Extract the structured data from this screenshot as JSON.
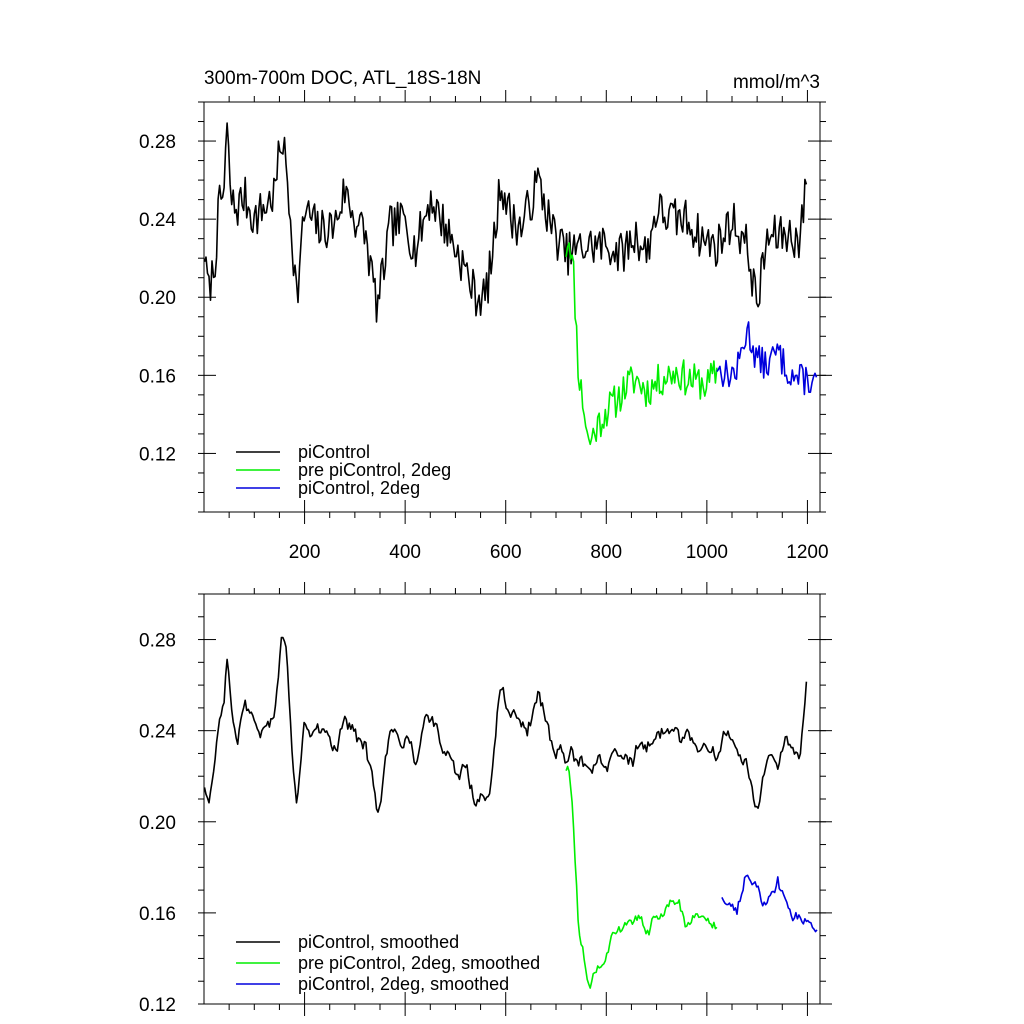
{
  "chart_data": [
    {
      "type": "line",
      "title": "300m-700m DOC, ATL_18S-18N",
      "units": "mmol/m^3",
      "xlim": [
        0,
        1225
      ],
      "ylim": [
        0.09,
        0.3
      ],
      "x_ticks": [
        200,
        400,
        600,
        800,
        1000,
        1200
      ],
      "x_tick_labels": [
        "200",
        "400",
        "600",
        "800",
        "1000",
        "1200"
      ],
      "show_x_tick_labels": true,
      "y_ticks": [
        0.12,
        0.16,
        0.2,
        0.24,
        0.28
      ],
      "y_tick_labels": [
        "0.12",
        "0.16",
        "0.20",
        "0.24",
        "0.28"
      ],
      "legend": {
        "placement": "bottom-left",
        "entries": [
          "piControl",
          "pre piControl, 2deg",
          "piControl, 2deg"
        ]
      },
      "series": [
        {
          "name": "piControl",
          "color": "#000000",
          "x_range": [
            1,
            1200
          ],
          "anchors": [
            [
              1,
              0.221
            ],
            [
              10,
              0.206
            ],
            [
              20,
              0.214
            ],
            [
              30,
              0.246
            ],
            [
              40,
              0.255
            ],
            [
              45,
              0.287
            ],
            [
              55,
              0.248
            ],
            [
              65,
              0.245
            ],
            [
              80,
              0.252
            ],
            [
              100,
              0.24
            ],
            [
              120,
              0.246
            ],
            [
              140,
              0.253
            ],
            [
              155,
              0.283
            ],
            [
              165,
              0.262
            ],
            [
              175,
              0.232
            ],
            [
              185,
              0.199
            ],
            [
              200,
              0.245
            ],
            [
              230,
              0.234
            ],
            [
              260,
              0.237
            ],
            [
              280,
              0.255
            ],
            [
              300,
              0.24
            ],
            [
              320,
              0.233
            ],
            [
              345,
              0.194
            ],
            [
              370,
              0.236
            ],
            [
              400,
              0.24
            ],
            [
              420,
              0.224
            ],
            [
              450,
              0.251
            ],
            [
              480,
              0.236
            ],
            [
              510,
              0.22
            ],
            [
              540,
              0.201
            ],
            [
              560,
              0.2
            ],
            [
              575,
              0.224
            ],
            [
              590,
              0.26
            ],
            [
              610,
              0.241
            ],
            [
              630,
              0.235
            ],
            [
              650,
              0.249
            ],
            [
              665,
              0.26
            ],
            [
              690,
              0.236
            ],
            [
              720,
              0.222
            ],
            [
              760,
              0.226
            ],
            [
              800,
              0.227
            ],
            [
              830,
              0.222
            ],
            [
              860,
              0.232
            ],
            [
              880,
              0.222
            ],
            [
              900,
              0.245
            ],
            [
              930,
              0.24
            ],
            [
              960,
              0.24
            ],
            [
              990,
              0.23
            ],
            [
              1020,
              0.226
            ],
            [
              1050,
              0.24
            ],
            [
              1080,
              0.226
            ],
            [
              1100,
              0.196
            ],
            [
              1120,
              0.23
            ],
            [
              1150,
              0.232
            ],
            [
              1170,
              0.232
            ],
            [
              1185,
              0.228
            ],
            [
              1200,
              0.265
            ]
          ],
          "noise": 0.011,
          "seed": 7,
          "smoothed": false
        },
        {
          "name": "pre piControl, 2deg",
          "color": "#00ee00",
          "x_range": [
            720,
            1020
          ],
          "anchors": [
            [
              720,
              0.223
            ],
            [
              725,
              0.231
            ],
            [
              735,
              0.212
            ],
            [
              745,
              0.161
            ],
            [
              755,
              0.144
            ],
            [
              765,
              0.125
            ],
            [
              780,
              0.133
            ],
            [
              800,
              0.142
            ],
            [
              820,
              0.147
            ],
            [
              840,
              0.155
            ],
            [
              860,
              0.158
            ],
            [
              880,
              0.152
            ],
            [
              900,
              0.156
            ],
            [
              920,
              0.16
            ],
            [
              940,
              0.162
            ],
            [
              960,
              0.158
            ],
            [
              980,
              0.157
            ],
            [
              1000,
              0.155
            ],
            [
              1020,
              0.162
            ]
          ],
          "noise": 0.009,
          "seed": 11,
          "smoothed": false
        },
        {
          "name": "piControl, 2deg",
          "color": "#0000dd",
          "x_range": [
            1020,
            1220
          ],
          "anchors": [
            [
              1020,
              0.164
            ],
            [
              1040,
              0.16
            ],
            [
              1060,
              0.162
            ],
            [
              1080,
              0.184
            ],
            [
              1100,
              0.168
            ],
            [
              1120,
              0.165
            ],
            [
              1140,
              0.172
            ],
            [
              1160,
              0.163
            ],
            [
              1180,
              0.158
            ],
            [
              1200,
              0.158
            ],
            [
              1220,
              0.155
            ]
          ],
          "noise": 0.008,
          "seed": 13,
          "smoothed": false
        }
      ]
    },
    {
      "type": "line",
      "title": "",
      "units": "",
      "xlim": [
        0,
        1225
      ],
      "ylim": [
        0.12,
        0.3
      ],
      "x_ticks": [
        200,
        400,
        600,
        800,
        1000,
        1200
      ],
      "x_tick_labels": [],
      "show_x_tick_labels": false,
      "y_ticks": [
        0.12,
        0.16,
        0.2,
        0.24,
        0.28
      ],
      "y_tick_labels": [
        "0.12",
        "0.16",
        "0.20",
        "0.24",
        "0.28"
      ],
      "legend": {
        "placement": "bottom-left",
        "entries": [
          "piControl, smoothed",
          "pre piControl, 2deg, smoothed",
          "piControl, 2deg, smoothed"
        ]
      },
      "series": [
        {
          "name": "piControl, smoothed",
          "color": "#000000",
          "x_range": [
            1,
            1200
          ],
          "anchors": [
            [
              1,
              0.215
            ],
            [
              10,
              0.208
            ],
            [
              20,
              0.226
            ],
            [
              30,
              0.248
            ],
            [
              40,
              0.255
            ],
            [
              45,
              0.275
            ],
            [
              55,
              0.25
            ],
            [
              65,
              0.236
            ],
            [
              80,
              0.255
            ],
            [
              100,
              0.241
            ],
            [
              120,
              0.248
            ],
            [
              140,
              0.25
            ],
            [
              155,
              0.279
            ],
            [
              165,
              0.27
            ],
            [
              175,
              0.235
            ],
            [
              185,
              0.213
            ],
            [
              200,
              0.242
            ],
            [
              230,
              0.235
            ],
            [
              260,
              0.236
            ],
            [
              280,
              0.25
            ],
            [
              300,
              0.238
            ],
            [
              320,
              0.233
            ],
            [
              345,
              0.205
            ],
            [
              370,
              0.236
            ],
            [
              400,
              0.243
            ],
            [
              420,
              0.226
            ],
            [
              450,
              0.248
            ],
            [
              480,
              0.233
            ],
            [
              510,
              0.225
            ],
            [
              540,
              0.21
            ],
            [
              560,
              0.212
            ],
            [
              575,
              0.228
            ],
            [
              590,
              0.255
            ],
            [
              610,
              0.243
            ],
            [
              630,
              0.236
            ],
            [
              650,
              0.245
            ],
            [
              665,
              0.255
            ],
            [
              690,
              0.235
            ],
            [
              720,
              0.226
            ],
            [
              760,
              0.228
            ],
            [
              800,
              0.226
            ],
            [
              830,
              0.225
            ],
            [
              860,
              0.232
            ],
            [
              880,
              0.23
            ],
            [
              900,
              0.24
            ],
            [
              930,
              0.237
            ],
            [
              960,
              0.238
            ],
            [
              990,
              0.232
            ],
            [
              1020,
              0.228
            ],
            [
              1050,
              0.235
            ],
            [
              1080,
              0.225
            ],
            [
              1100,
              0.202
            ],
            [
              1120,
              0.228
            ],
            [
              1150,
              0.232
            ],
            [
              1170,
              0.233
            ],
            [
              1185,
              0.232
            ],
            [
              1200,
              0.255
            ]
          ],
          "noise": 0.006,
          "seed": 17,
          "smoothed": true
        },
        {
          "name": "pre piControl, 2deg, smoothed",
          "color": "#00ee00",
          "x_range": [
            720,
            1020
          ],
          "anchors": [
            [
              720,
              0.224
            ],
            [
              725,
              0.227
            ],
            [
              735,
              0.2
            ],
            [
              745,
              0.155
            ],
            [
              755,
              0.14
            ],
            [
              765,
              0.127
            ],
            [
              780,
              0.138
            ],
            [
              800,
              0.14
            ],
            [
              820,
              0.148
            ],
            [
              840,
              0.158
            ],
            [
              860,
              0.157
            ],
            [
              880,
              0.152
            ],
            [
              900,
              0.158
            ],
            [
              920,
              0.162
            ],
            [
              940,
              0.163
            ],
            [
              960,
              0.157
            ],
            [
              980,
              0.158
            ],
            [
              1000,
              0.156
            ],
            [
              1020,
              0.155
            ]
          ],
          "noise": 0.005,
          "seed": 19,
          "smoothed": true
        },
        {
          "name": "piControl, 2deg, smoothed",
          "color": "#0000dd",
          "x_range": [
            1030,
            1220
          ],
          "anchors": [
            [
              1030,
              0.168
            ],
            [
              1040,
              0.162
            ],
            [
              1060,
              0.162
            ],
            [
              1080,
              0.182
            ],
            [
              1100,
              0.167
            ],
            [
              1120,
              0.165
            ],
            [
              1140,
              0.175
            ],
            [
              1160,
              0.163
            ],
            [
              1180,
              0.158
            ],
            [
              1200,
              0.161
            ],
            [
              1220,
              0.157
            ]
          ],
          "noise": 0.005,
          "seed": 23,
          "smoothed": true
        }
      ]
    }
  ]
}
